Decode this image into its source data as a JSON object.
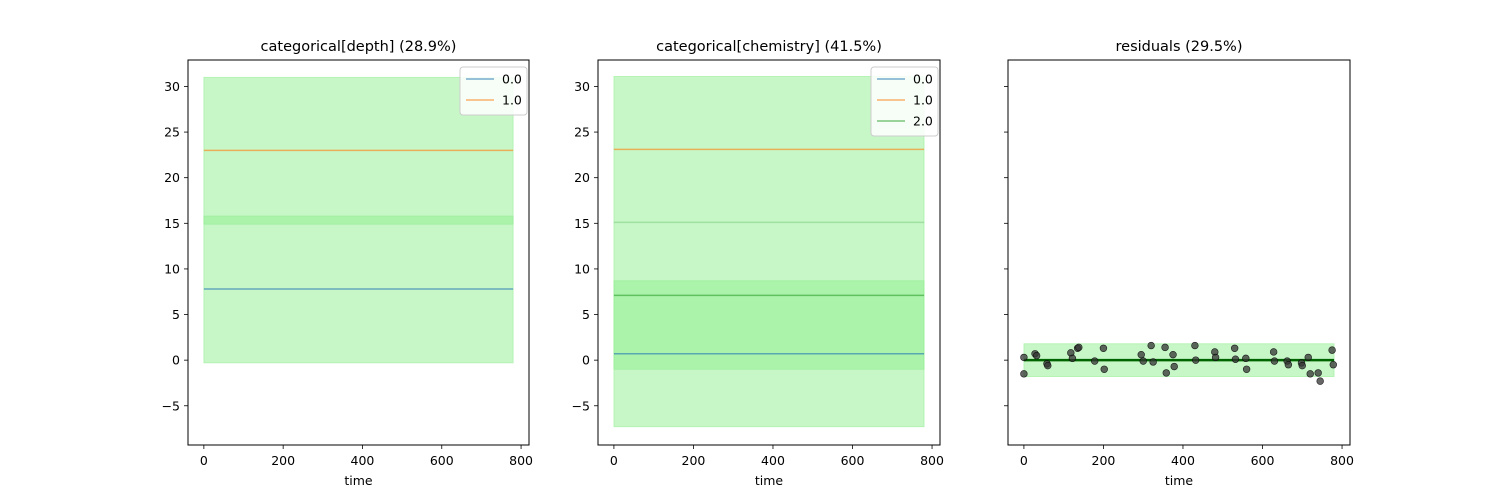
{
  "chart_data": [
    {
      "type": "line",
      "title": "categorical[depth] (28.9%)",
      "xlabel": "time",
      "ylabel": "",
      "xlim": [
        -40,
        820
      ],
      "ylim": [
        -9.3,
        32.9
      ],
      "x_ticks": [
        0,
        200,
        400,
        600,
        800
      ],
      "y_ticks": [
        -5,
        0,
        5,
        10,
        15,
        20,
        25,
        30
      ],
      "x_range": [
        0,
        780
      ],
      "legend": "top-right",
      "bands": [
        {
          "lower": -0.3,
          "upper": 31.0,
          "color": "#90EE90",
          "opacity": 0.5
        },
        {
          "lower": 14.9,
          "upper": 15.8,
          "color": "#90EE90",
          "opacity": 0.5
        }
      ],
      "series": [
        {
          "name": "0.0",
          "value": 7.8,
          "color": "#1f77b4"
        },
        {
          "name": "1.0",
          "value": 23.0,
          "color": "#ff7f0e"
        }
      ]
    },
    {
      "type": "line",
      "title": "categorical[chemistry] (41.5%)",
      "xlabel": "time",
      "ylabel": "",
      "xlim": [
        -40,
        820
      ],
      "ylim": [
        -9.3,
        32.9
      ],
      "x_ticks": [
        0,
        200,
        400,
        600,
        800
      ],
      "y_ticks": [
        -5,
        0,
        5,
        10,
        15,
        20,
        25,
        30
      ],
      "x_range": [
        0,
        780
      ],
      "legend": "top-right",
      "bands": [
        {
          "lower": -7.3,
          "upper": 31.1,
          "color": "#90EE90",
          "opacity": 0.5
        },
        {
          "lower": -1.0,
          "upper": 8.7,
          "color": "#90EE90",
          "opacity": 0.5
        }
      ],
      "series": [
        {
          "name": "0.0",
          "value": 0.7,
          "color": "#1f77b4"
        },
        {
          "name": "1.0",
          "value": 23.1,
          "color": "#ff7f0e"
        },
        {
          "name": "2.0",
          "value": 7.1,
          "color": "#2ca02c"
        },
        {
          "value": 15.1,
          "color": "#2ca02c",
          "faint": true
        }
      ]
    },
    {
      "type": "scatter",
      "title": "residuals (29.5%)",
      "xlabel": "time",
      "ylabel": "",
      "xlim": [
        -40,
        820
      ],
      "ylim": [
        -9.3,
        32.9
      ],
      "x_ticks": [
        0,
        200,
        400,
        600,
        800
      ],
      "y_ticks": [],
      "x_range": [
        0,
        780
      ],
      "bands": [
        {
          "lower": -1.8,
          "upper": 1.8,
          "color": "#90EE90",
          "opacity": 0.5
        }
      ],
      "baseline": {
        "value": 0,
        "color": "#006400"
      },
      "points": [
        [
          0,
          0.3
        ],
        [
          0,
          -1.5
        ],
        [
          28,
          0.7
        ],
        [
          32,
          0.5
        ],
        [
          58,
          -0.4
        ],
        [
          60,
          -0.6
        ],
        [
          118,
          0.8
        ],
        [
          122,
          0.2
        ],
        [
          135,
          1.3
        ],
        [
          138,
          1.4
        ],
        [
          178,
          -0.1
        ],
        [
          200,
          1.3
        ],
        [
          202,
          -1.0
        ],
        [
          295,
          0.6
        ],
        [
          300,
          -0.1
        ],
        [
          320,
          1.6
        ],
        [
          325,
          -0.2
        ],
        [
          355,
          1.4
        ],
        [
          358,
          -1.4
        ],
        [
          375,
          0.6
        ],
        [
          378,
          -0.7
        ],
        [
          430,
          1.6
        ],
        [
          432,
          0.0
        ],
        [
          480,
          0.9
        ],
        [
          482,
          0.3
        ],
        [
          530,
          1.3
        ],
        [
          532,
          0.1
        ],
        [
          558,
          0.2
        ],
        [
          560,
          -1.0
        ],
        [
          628,
          0.9
        ],
        [
          630,
          -0.1
        ],
        [
          662,
          -0.1
        ],
        [
          665,
          -0.5
        ],
        [
          698,
          -0.3
        ],
        [
          700,
          -0.6
        ],
        [
          715,
          0.3
        ],
        [
          720,
          -1.5
        ],
        [
          740,
          -1.4
        ],
        [
          745,
          -2.3
        ],
        [
          775,
          1.1
        ],
        [
          778,
          -0.5
        ]
      ]
    }
  ]
}
